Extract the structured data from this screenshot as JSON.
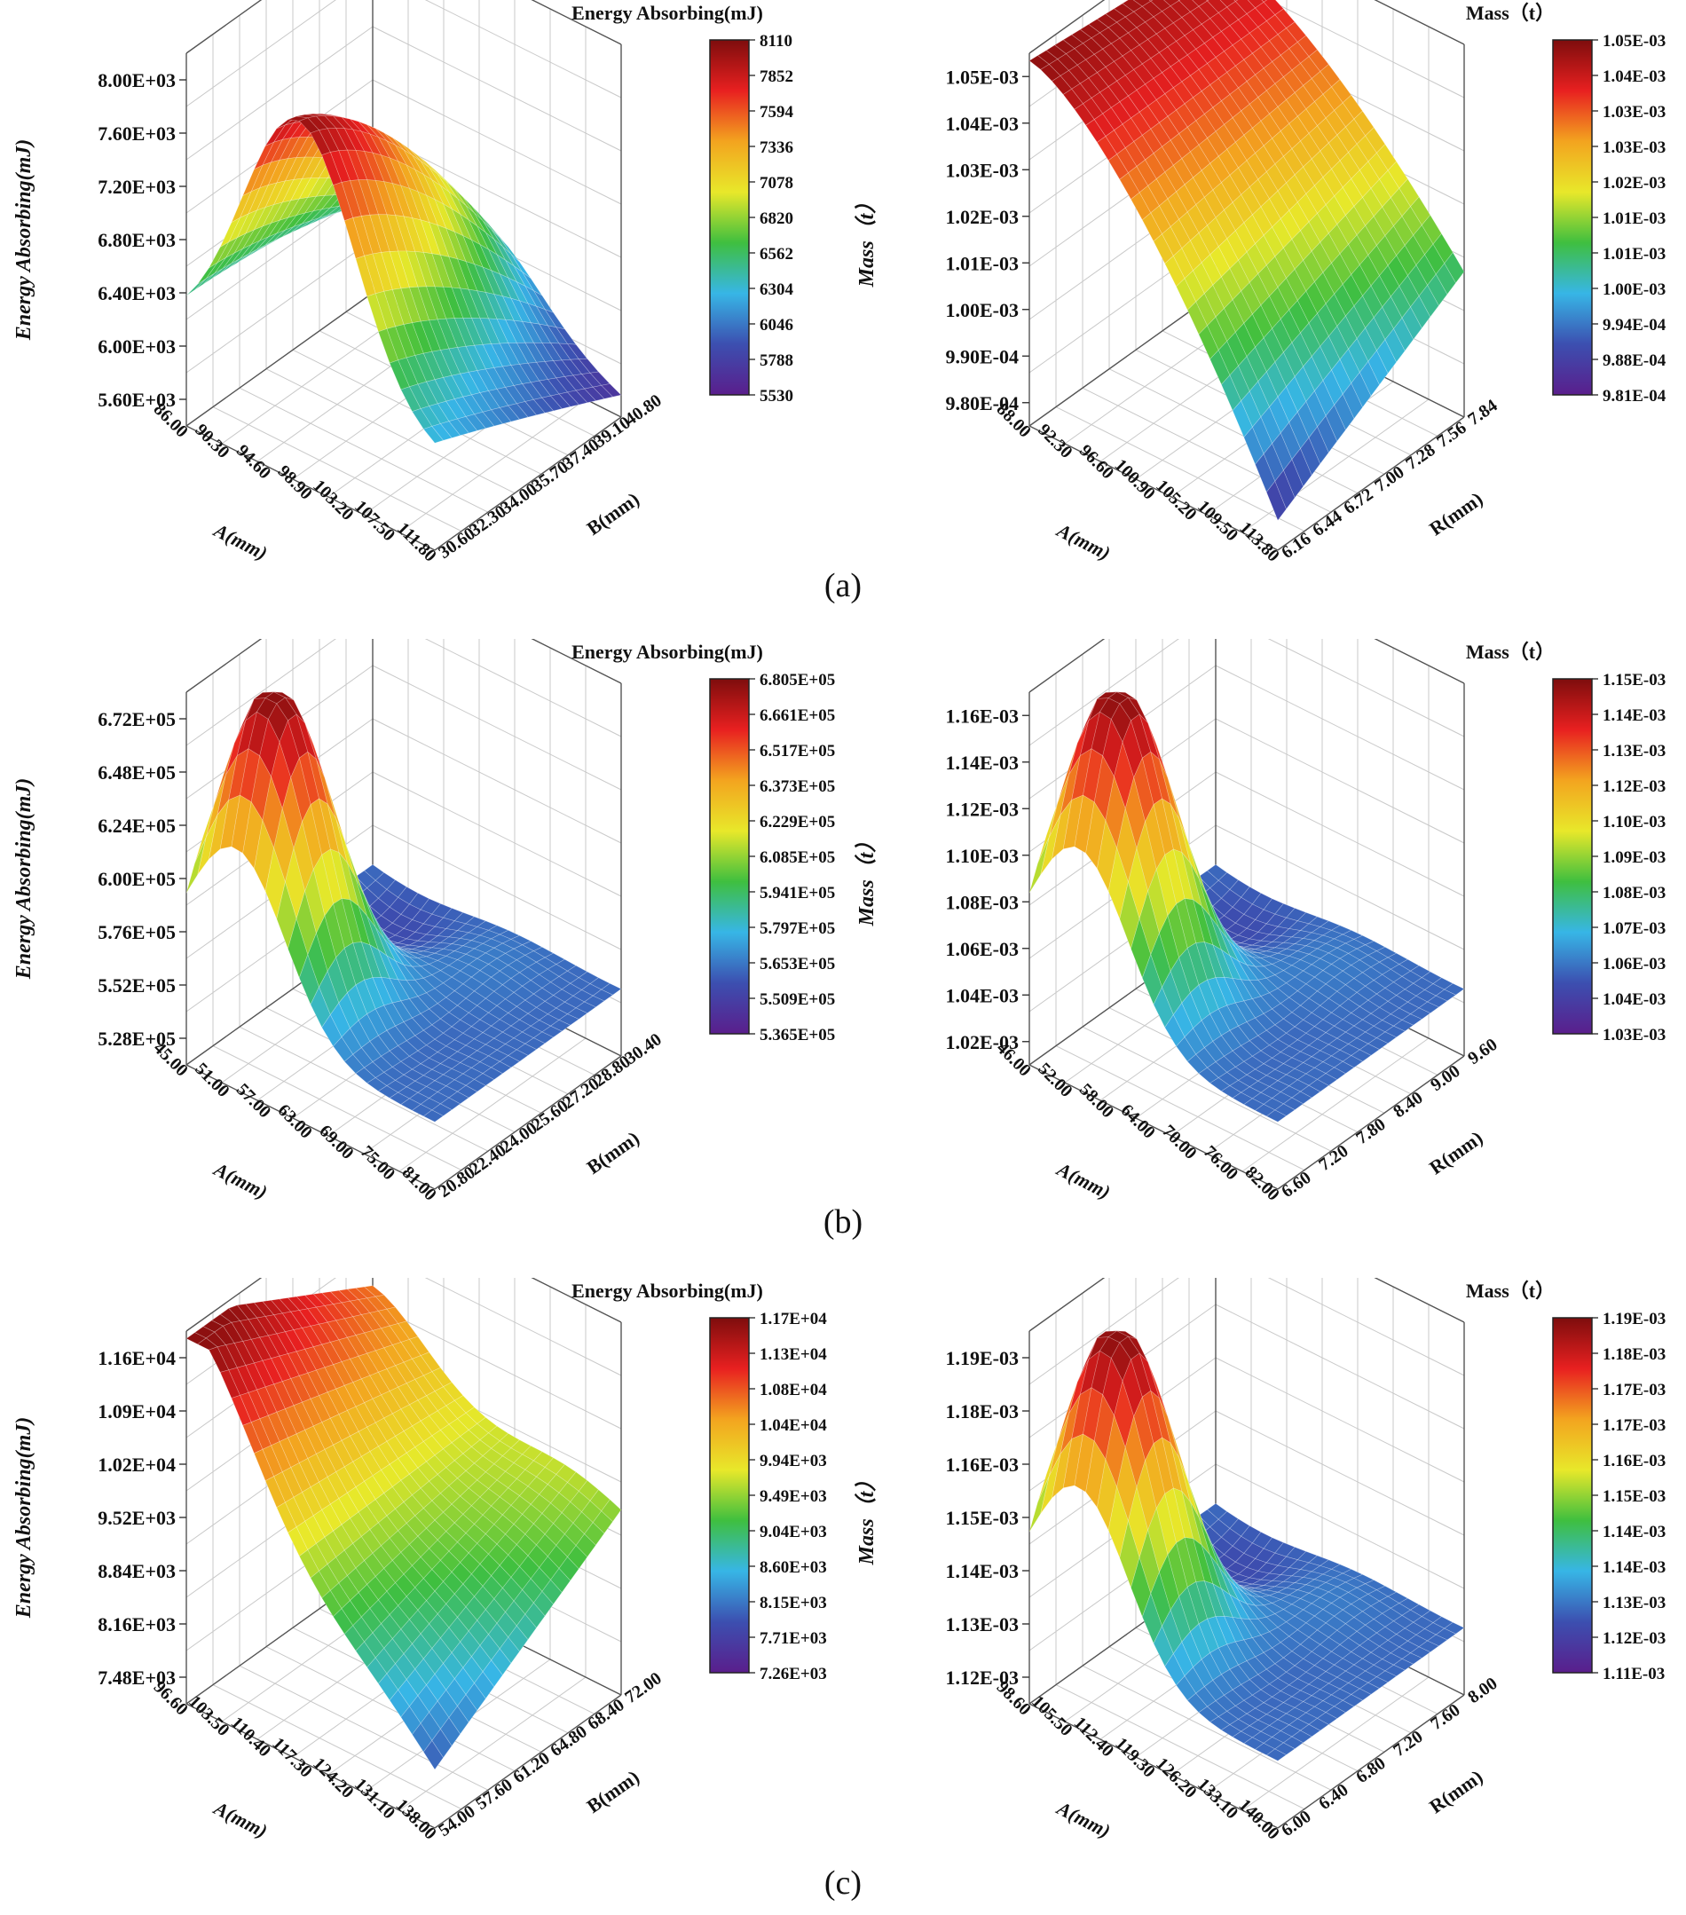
{
  "captions": {
    "a": "(a)",
    "b": "(b)",
    "c": "(c)"
  },
  "colormap": [
    "#5a1e8c",
    "#3c4fb0",
    "#37b6e6",
    "#3fbf3f",
    "#e8e82a",
    "#f3a41f",
    "#e82020",
    "#7e0d0d"
  ],
  "chart_data": [
    {
      "id": "a-left",
      "type": "surface",
      "shape": "ridge",
      "title": "Energy Absorbing(mJ)",
      "zlabel": "Energy Absorbing(mJ)",
      "xlabel": "A(mm)",
      "ylabel": "B(mm)",
      "zticks": [
        "5.60E+03",
        "6.00E+03",
        "6.40E+03",
        "6.80E+03",
        "7.20E+03",
        "7.60E+03",
        "8.00E+03"
      ],
      "xticks": [
        "86.00",
        "90.30",
        "94.60",
        "98.90",
        "103.20",
        "107.50",
        "111.80"
      ],
      "yticks": [
        "30.60",
        "32.30",
        "34.00",
        "35.70",
        "37.40",
        "39.10",
        "40.80"
      ],
      "colorbar": [
        "8110",
        "7852",
        "7594",
        "7336",
        "7078",
        "6820",
        "6562",
        "6304",
        "6046",
        "5788",
        "5530"
      ]
    },
    {
      "id": "a-right",
      "type": "surface",
      "shape": "dome",
      "title": "Mass（t）",
      "zlabel": "Mass（t）",
      "xlabel": "A(mm)",
      "ylabel": "R(mm)",
      "zticks": [
        "9.80E-04",
        "9.90E-04",
        "1.00E-03",
        "1.01E-03",
        "1.02E-03",
        "1.03E-03",
        "1.04E-03",
        "1.05E-03"
      ],
      "xticks": [
        "88.00",
        "92.30",
        "96.60",
        "100.90",
        "105.20",
        "109.50",
        "113.80"
      ],
      "yticks": [
        "6.16",
        "6.44",
        "6.72",
        "7.00",
        "7.28",
        "7.56",
        "7.84"
      ],
      "colorbar": [
        "1.05E-03",
        "1.04E-03",
        "1.03E-03",
        "1.03E-03",
        "1.02E-03",
        "1.01E-03",
        "1.01E-03",
        "1.00E-03",
        "9.94E-04",
        "9.88E-04",
        "9.81E-04"
      ]
    },
    {
      "id": "b-left",
      "type": "surface",
      "shape": "peak",
      "title": "Energy Absorbing(mJ)",
      "zlabel": "Energy Absorbing(mJ)",
      "xlabel": "A(mm)",
      "ylabel": "B(mm)",
      "zticks": [
        "5.28E+05",
        "5.52E+05",
        "5.76E+05",
        "6.00E+05",
        "6.24E+05",
        "6.48E+05",
        "6.72E+05"
      ],
      "xticks": [
        "45.00",
        "51.00",
        "57.00",
        "63.00",
        "69.00",
        "75.00",
        "81.00"
      ],
      "yticks": [
        "20.80",
        "22.40",
        "24.00",
        "25.60",
        "27.20",
        "28.80",
        "30.40"
      ],
      "colorbar": [
        "6.805E+05",
        "6.661E+05",
        "6.517E+05",
        "6.373E+05",
        "6.229E+05",
        "6.085E+05",
        "5.941E+05",
        "5.797E+05",
        "5.653E+05",
        "5.509E+05",
        "5.365E+05"
      ]
    },
    {
      "id": "b-right",
      "type": "surface",
      "shape": "peak",
      "title": "Mass（t）",
      "zlabel": "Mass（t）",
      "xlabel": "A(mm)",
      "ylabel": "R(mm)",
      "zticks": [
        "1.02E-03",
        "1.04E-03",
        "1.06E-03",
        "1.08E-03",
        "1.10E-03",
        "1.12E-03",
        "1.14E-03",
        "1.16E-03"
      ],
      "xticks": [
        "46.00",
        "52.00",
        "58.00",
        "64.00",
        "70.00",
        "76.00",
        "82.00"
      ],
      "yticks": [
        "6.60",
        "7.20",
        "7.80",
        "8.40",
        "9.00",
        "9.60"
      ],
      "colorbar": [
        "1.15E-03",
        "1.14E-03",
        "1.13E-03",
        "1.12E-03",
        "1.10E-03",
        "1.09E-03",
        "1.08E-03",
        "1.07E-03",
        "1.06E-03",
        "1.04E-03",
        "1.03E-03"
      ]
    },
    {
      "id": "c-left",
      "type": "surface",
      "shape": "slope",
      "title": "Energy Absorbing(mJ)",
      "zlabel": "Energy Absorbing(mJ)",
      "xlabel": "A(mm)",
      "ylabel": "B(mm)",
      "zticks": [
        "7.48E+03",
        "8.16E+03",
        "8.84E+03",
        "9.52E+03",
        "1.02E+04",
        "1.09E+04",
        "1.16E+04"
      ],
      "xticks": [
        "96.60",
        "103.50",
        "110.40",
        "117.30",
        "124.20",
        "131.10",
        "138.00"
      ],
      "yticks": [
        "54.00",
        "57.60",
        "61.20",
        "64.80",
        "68.40",
        "72.00"
      ],
      "colorbar": [
        "1.17E+04",
        "1.13E+04",
        "1.08E+04",
        "1.04E+04",
        "9.94E+03",
        "9.49E+03",
        "9.04E+03",
        "8.60E+03",
        "8.15E+03",
        "7.71E+03",
        "7.26E+03"
      ]
    },
    {
      "id": "c-right",
      "type": "surface",
      "shape": "peak",
      "title": "Mass（t）",
      "zlabel": "Mass（t）",
      "xlabel": "A(mm)",
      "ylabel": "R(mm)",
      "zticks": [
        "1.12E-03",
        "1.13E-03",
        "1.14E-03",
        "1.15E-03",
        "1.16E-03",
        "1.18E-03",
        "1.19E-03"
      ],
      "xticks": [
        "98.60",
        "105.50",
        "112.40",
        "119.30",
        "126.20",
        "133.10",
        "140.00"
      ],
      "yticks": [
        "6.00",
        "6.40",
        "6.80",
        "7.20",
        "7.60",
        "8.00"
      ],
      "colorbar": [
        "1.19E-03",
        "1.18E-03",
        "1.17E-03",
        "1.17E-03",
        "1.16E-03",
        "1.15E-03",
        "1.14E-03",
        "1.14E-03",
        "1.13E-03",
        "1.12E-03",
        "1.11E-03"
      ]
    }
  ]
}
